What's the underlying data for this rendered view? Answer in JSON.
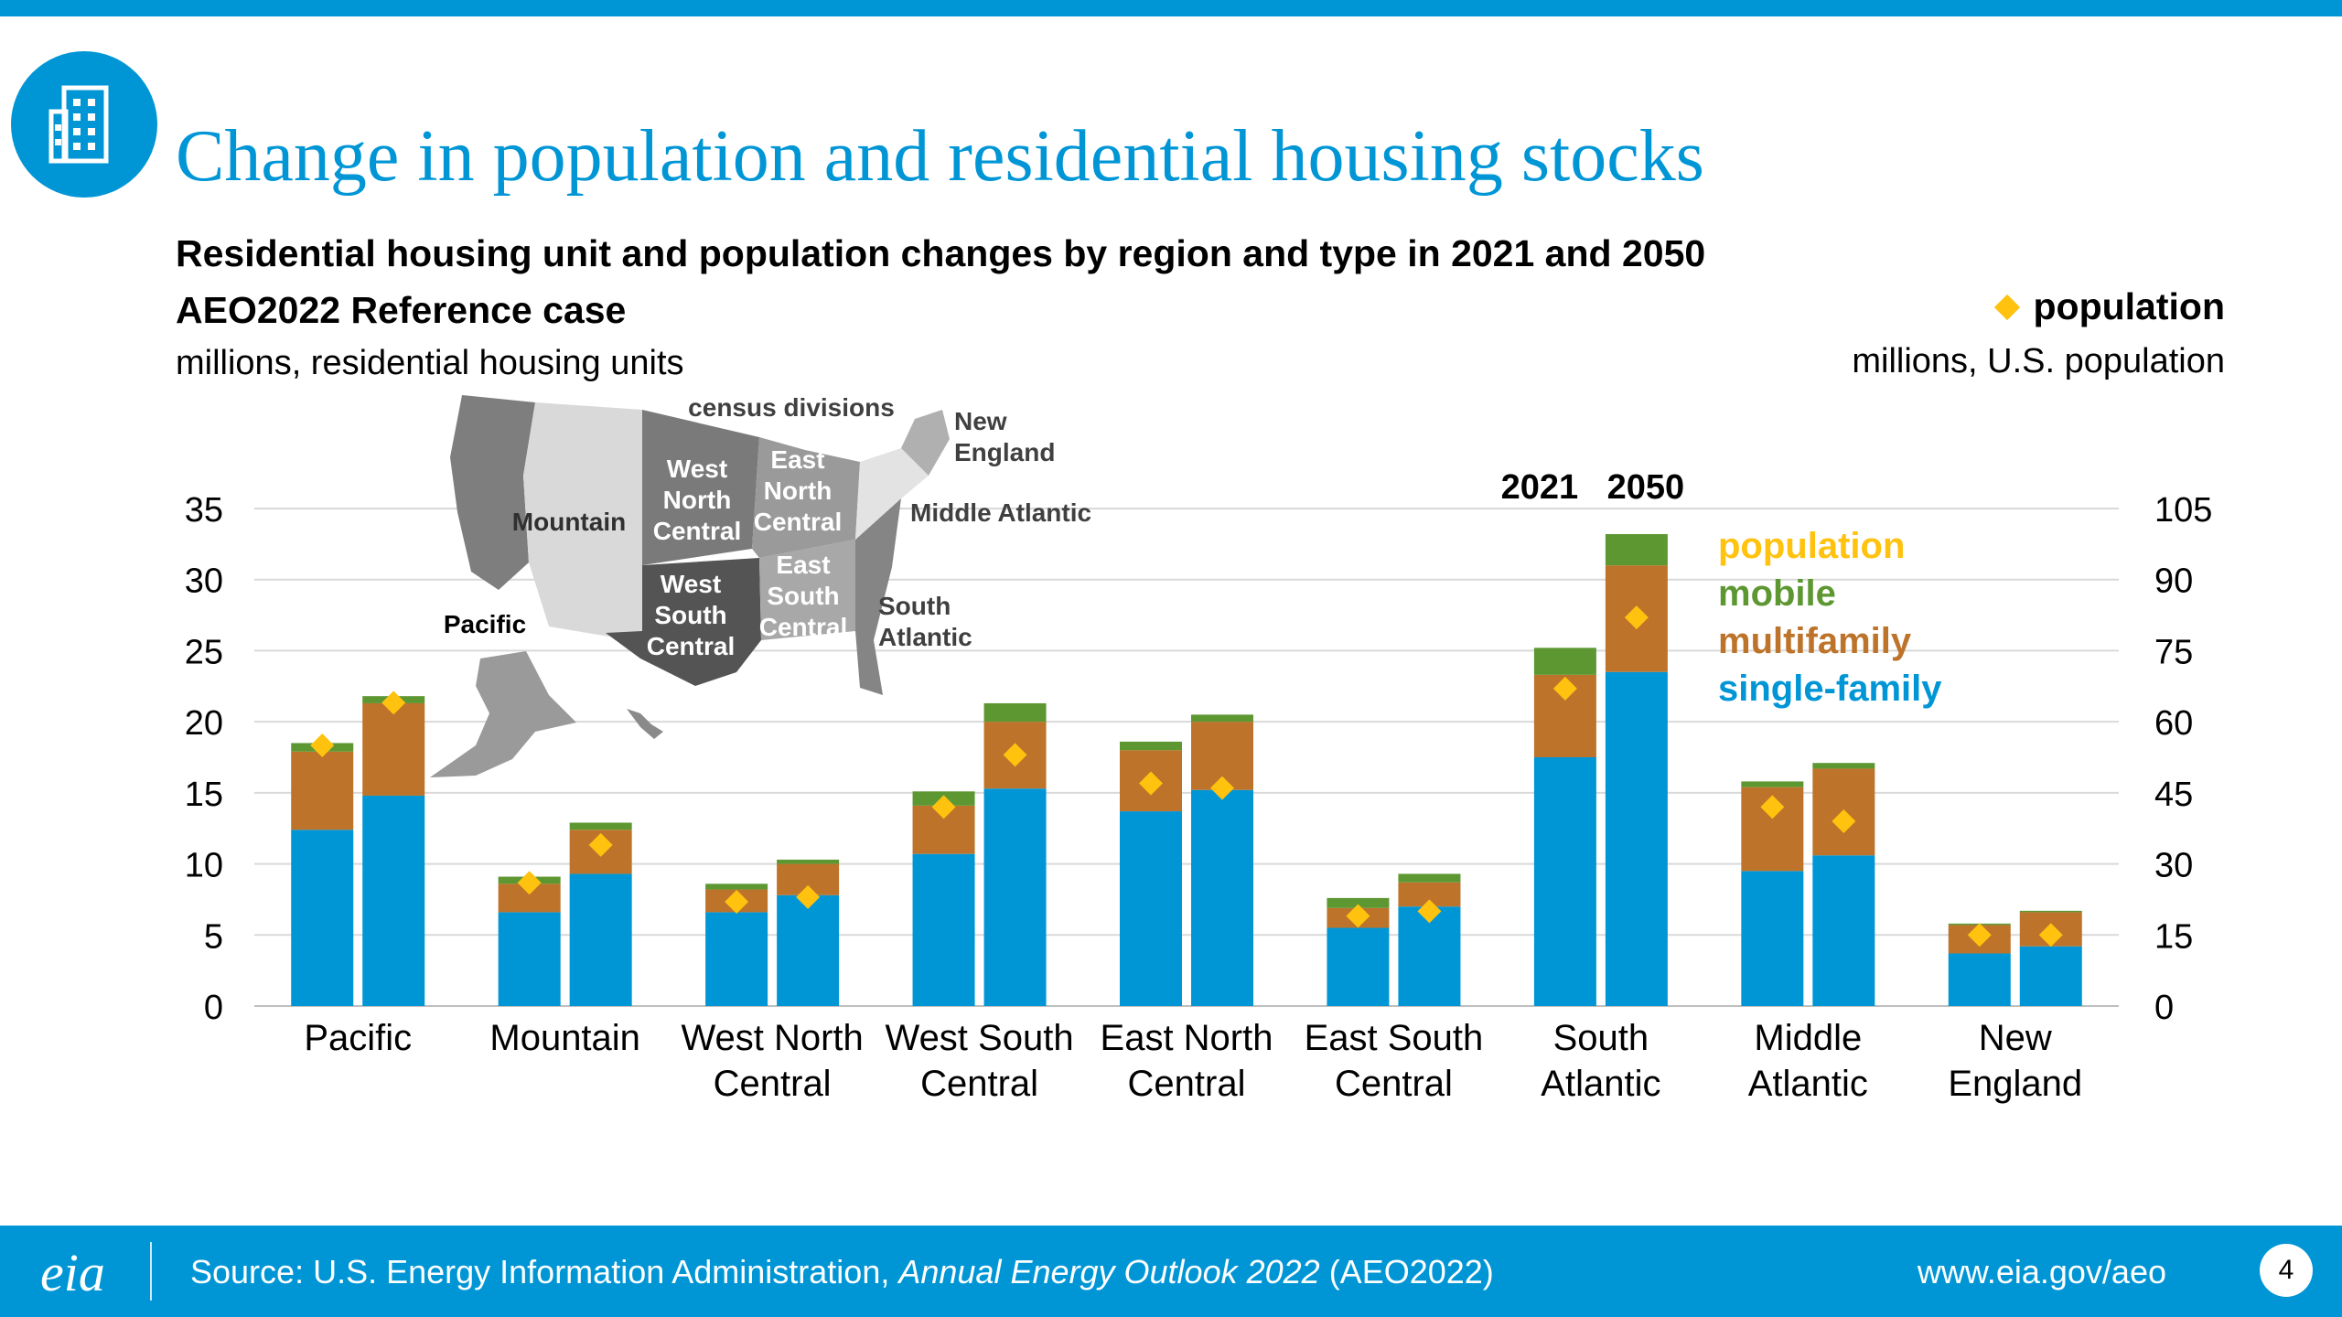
{
  "header": {
    "title": "Change in population and residential housing stocks",
    "subtitle": "Residential housing unit and population changes by region and type in 2021 and 2050",
    "case": "AEO2022 Reference case",
    "units_left": "millions, residential housing units",
    "units_right": "millions, U.S. population",
    "population_legend": "population",
    "icon": "building-icon"
  },
  "map": {
    "title": "census divisions",
    "labels": [
      "Pacific",
      "Mountain",
      "West North Central",
      "West South Central",
      "East North Central",
      "East South Central",
      "South Atlantic",
      "Middle Atlantic",
      "New England"
    ]
  },
  "chart_data": {
    "type": "bar",
    "stacked": true,
    "years": [
      "2021",
      "2050"
    ],
    "categories": [
      "Pacific",
      "Mountain",
      "West North Central",
      "West South Central",
      "East North Central",
      "East South Central",
      "South Atlantic",
      "Middle Atlantic",
      "New England"
    ],
    "category_lines": [
      [
        "Pacific"
      ],
      [
        "Mountain"
      ],
      [
        "West North",
        "Central"
      ],
      [
        "West South",
        "Central"
      ],
      [
        "East North",
        "Central"
      ],
      [
        "East South",
        "Central"
      ],
      [
        "South",
        "Atlantic"
      ],
      [
        "Middle",
        "Atlantic"
      ],
      [
        "New",
        "England"
      ]
    ],
    "legend": [
      {
        "name": "population",
        "color": "#ffc20e"
      },
      {
        "name": "mobile",
        "color": "#5d9732"
      },
      {
        "name": "multifamily",
        "color": "#bd732a"
      },
      {
        "name": "single-family",
        "color": "#0096d6"
      }
    ],
    "series": [
      {
        "name": "single-family",
        "color": "#0096d6",
        "values_2021": [
          12.4,
          6.6,
          6.6,
          10.7,
          13.7,
          5.5,
          17.5,
          9.5,
          3.7
        ],
        "values_2050": [
          14.8,
          9.3,
          7.8,
          15.3,
          15.2,
          7.0,
          23.5,
          10.6,
          4.2
        ]
      },
      {
        "name": "multifamily",
        "color": "#bd732a",
        "values_2021": [
          5.5,
          2.0,
          1.6,
          3.4,
          4.3,
          1.4,
          5.8,
          5.9,
          2.0
        ],
        "values_2050": [
          6.5,
          3.1,
          2.2,
          4.7,
          4.8,
          1.7,
          7.5,
          6.1,
          2.4
        ]
      },
      {
        "name": "mobile",
        "color": "#5d9732",
        "values_2021": [
          0.6,
          0.5,
          0.4,
          1.0,
          0.6,
          0.7,
          1.9,
          0.4,
          0.1
        ],
        "values_2050": [
          0.5,
          0.5,
          0.3,
          1.3,
          0.5,
          0.6,
          2.2,
          0.4,
          0.1
        ]
      }
    ],
    "population_2021": [
      55,
      26,
      22,
      42,
      47,
      19,
      67,
      42,
      15
    ],
    "population_2050": [
      64,
      34,
      23,
      53,
      46,
      20,
      82,
      39,
      15
    ],
    "ylim_left": [
      0,
      35
    ],
    "ylim_right": [
      0,
      105
    ],
    "yticks_left": [
      0,
      5,
      10,
      15,
      20,
      25,
      30,
      35
    ],
    "yticks_right": [
      0,
      15,
      30,
      45,
      60,
      75,
      90,
      105
    ],
    "grid": true,
    "legend_placement": "right"
  },
  "footer": {
    "logo_text": "eia",
    "source_prefix": "Source: U.S. Energy Information Administration, ",
    "source_italic": "Annual Energy Outlook 2022",
    "source_suffix": " (AEO2022)",
    "url": "www.eia.gov/aeo",
    "page": "4"
  }
}
